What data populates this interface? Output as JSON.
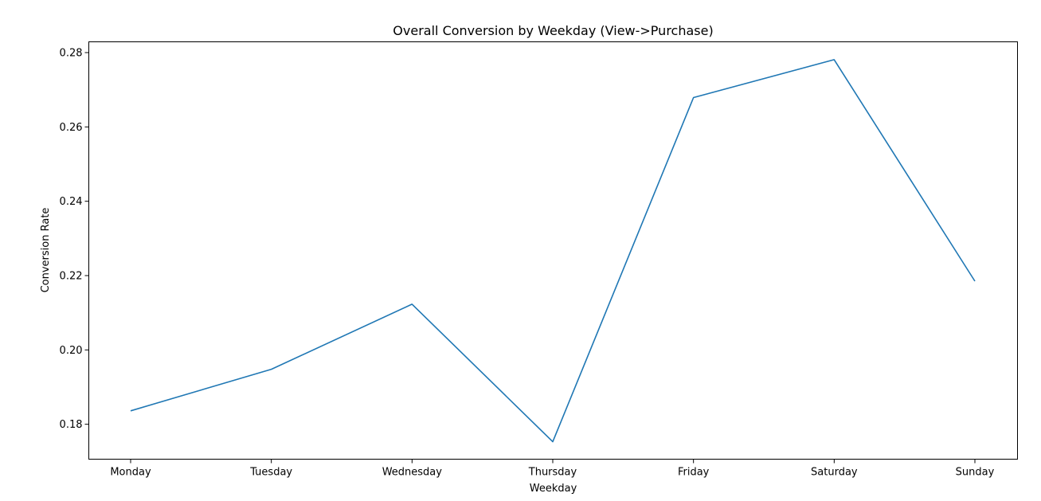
{
  "chart_data": {
    "type": "line",
    "title": "Overall Conversion by Weekday (View->Purchase)",
    "xlabel": "Weekday",
    "ylabel": "Conversion Rate",
    "categories": [
      "Monday",
      "Tuesday",
      "Wednesday",
      "Thursday",
      "Friday",
      "Saturday",
      "Sunday"
    ],
    "series": [
      {
        "values": [
          0.1836,
          0.1948,
          0.2123,
          0.1753,
          0.2679,
          0.2781,
          0.2185
        ],
        "color": "#1f77b4"
      }
    ],
    "ylim": [
      0.1706,
      0.2829
    ],
    "yticks": [
      0.18,
      0.2,
      0.22,
      0.24,
      0.26,
      0.28
    ],
    "ytick_labels": [
      "0.18",
      "0.20",
      "0.22",
      "0.24",
      "0.26",
      "0.28"
    ],
    "grid": false,
    "legend": "none"
  }
}
